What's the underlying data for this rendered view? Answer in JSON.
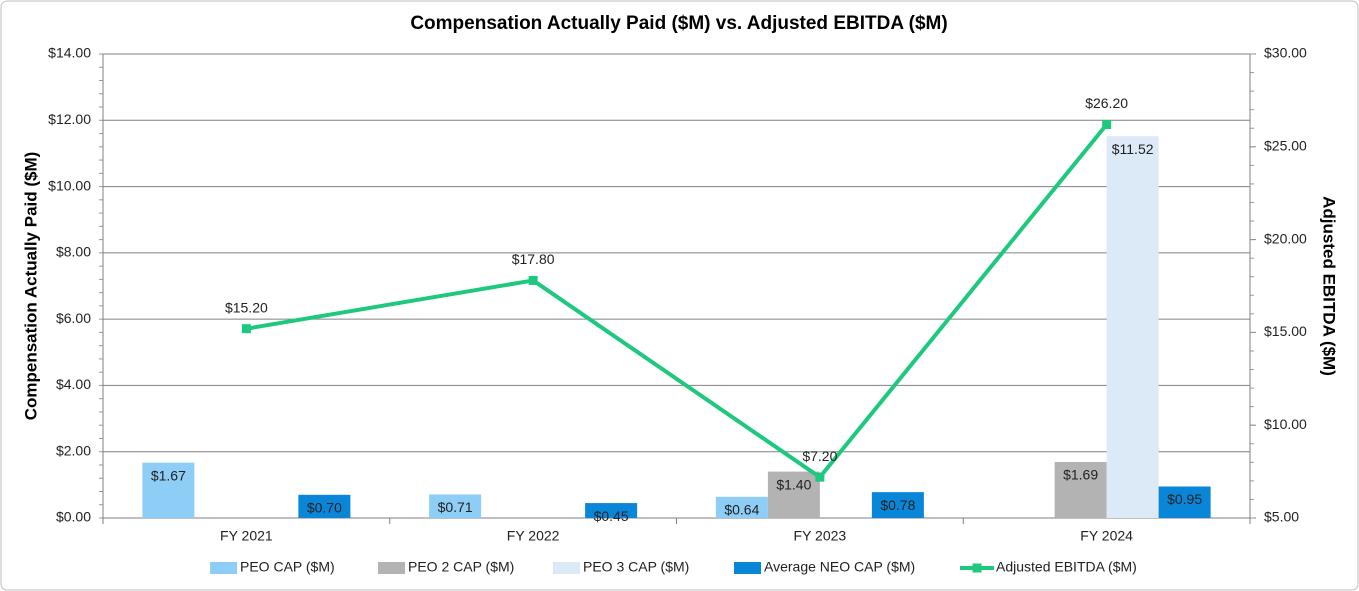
{
  "chart_data": {
    "type": "bar",
    "title": "Compensation Actually Paid ($M) vs. Adjusted EBITDA ($M)",
    "y_label": "Compensation Actually Paid ($M)",
    "y2_label": "Adjusted EBITDA ($M)",
    "categories": [
      "FY 2021",
      "FY 2022",
      "FY 2023",
      "FY 2024"
    ],
    "series": [
      {
        "name": "PEO CAP ($M)",
        "color": "#8ecdf5",
        "values": [
          1.67,
          0.71,
          0.64,
          null
        ],
        "value_labels": [
          "$1.67",
          "$0.71",
          "$0.64",
          null
        ]
      },
      {
        "name": "PEO 2 CAP ($M)",
        "color": "#b3b3b3",
        "values": [
          null,
          null,
          1.4,
          1.69
        ],
        "value_labels": [
          null,
          null,
          "$1.40",
          "$1.69"
        ]
      },
      {
        "name": "PEO 3 CAP ($M)",
        "color": "#dce9f7",
        "values": [
          null,
          null,
          null,
          11.52
        ],
        "value_labels": [
          null,
          null,
          null,
          "$11.52"
        ]
      },
      {
        "name": "Average NEO CAP ($M)",
        "color": "#0a86d8",
        "values": [
          0.7,
          0.45,
          0.78,
          0.95
        ],
        "value_labels": [
          "$0.70",
          "$0.45",
          "$0.78",
          "$0.95"
        ]
      },
      {
        "name": "Adjusted EBITDA ($M)",
        "color": "#1ec97e",
        "type": "line",
        "axis": "y2",
        "values": [
          15.2,
          17.8,
          7.2,
          26.2
        ],
        "value_labels": [
          "$15.20",
          "$17.80",
          "$7.20",
          "$26.20"
        ]
      }
    ],
    "ylim": [
      0,
      14
    ],
    "yticks": [
      {
        "value": 0,
        "label": "$0.00"
      },
      {
        "value": 2,
        "label": "$2.00"
      },
      {
        "value": 4,
        "label": "$4.00"
      },
      {
        "value": 6,
        "label": "$6.00"
      },
      {
        "value": 8,
        "label": "$8.00"
      },
      {
        "value": 10,
        "label": "$10.00"
      },
      {
        "value": 12,
        "label": "$12.00"
      },
      {
        "value": 14,
        "label": "$14.00"
      }
    ],
    "y2lim": [
      5,
      30
    ],
    "y2ticks": [
      {
        "value": 5,
        "label": "$5.00"
      },
      {
        "value": 10,
        "label": "$10.00"
      },
      {
        "value": 15,
        "label": "$15.00"
      },
      {
        "value": 20,
        "label": "$20.00"
      },
      {
        "value": 25,
        "label": "$25.00"
      },
      {
        "value": 30,
        "label": "$30.00"
      }
    ],
    "grid": true,
    "legend": "bottom"
  }
}
